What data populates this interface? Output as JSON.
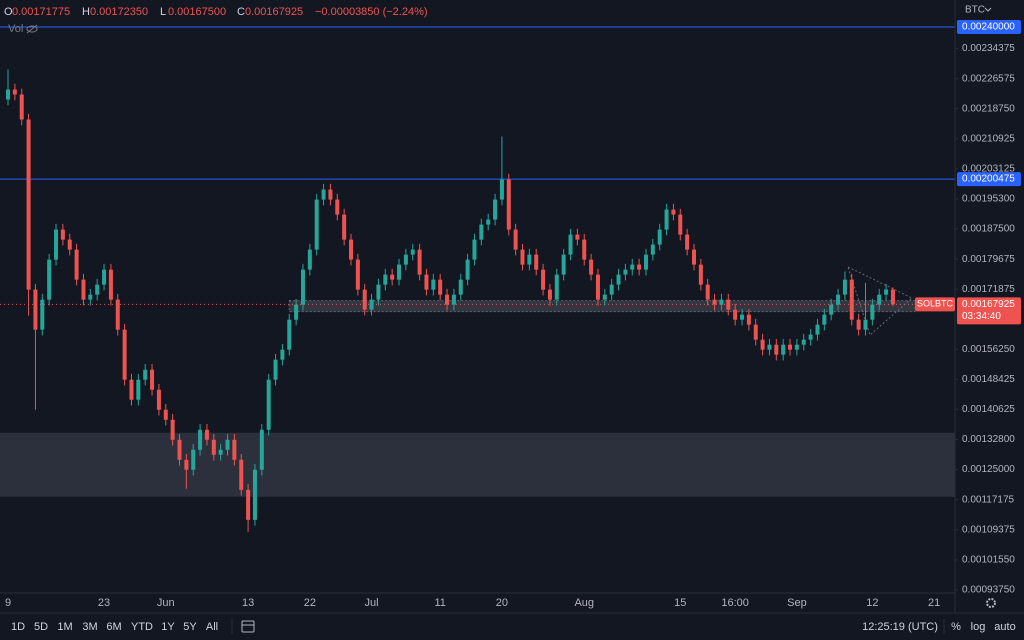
{
  "header": {
    "ohlc": [
      {
        "key": "O",
        "value": "0.00171775"
      },
      {
        "key": "H",
        "value": "0.00172350"
      },
      {
        "key": "L",
        "value": "0.00167500"
      },
      {
        "key": "C",
        "value": "0.00167925"
      }
    ],
    "change": "−0.00003850 (−2.24%)",
    "volume_label": "Vol"
  },
  "axis_currency": "BTC",
  "toolbar": {
    "ranges": [
      "1D",
      "5D",
      "1M",
      "3M",
      "6M",
      "YTD",
      "1Y",
      "5Y",
      "All"
    ],
    "time": "12:25:19 (UTC)",
    "options": [
      "%",
      "log",
      "auto"
    ]
  },
  "chart_data": {
    "type": "candlestick",
    "symbol": "SOLBTC",
    "countdown": "03:34:40",
    "last_price_label": "0.00167925",
    "up_color": "#26a69a",
    "down_color": "#ef5350",
    "grid": false,
    "ylim": [
      0.00088,
      0.00247
    ],
    "yticks": [
      {
        "value": 0.0009375,
        "label": "0.00093750"
      },
      {
        "value": 0.0010155,
        "label": "0.00101550"
      },
      0.00109375,
      0.00117175,
      {
        "value": 0.00125,
        "label": "0.00125000"
      },
      {
        "value": 0.001328,
        "label": "0.00132800"
      },
      0.00140625,
      0.00148425,
      {
        "value": 0.0015625,
        "label": "0.00156250"
      },
      0.00171875,
      0.00179675,
      {
        "value": 0.001875,
        "label": "0.00187500"
      },
      {
        "value": 0.001953,
        "label": "0.00195300"
      },
      0.00203125,
      0.00210925,
      {
        "value": 0.0021875,
        "label": "0.00218750"
      },
      0.00226575,
      0.00234375
    ],
    "price_lines": [
      {
        "value": 0.0024,
        "label": "0.00240000",
        "color": "#2962ff"
      },
      {
        "value": 0.00200475,
        "label": "0.00200475",
        "color": "#2962ff"
      }
    ],
    "zones": [
      {
        "low": 0.0011793,
        "high": 0.0013457
      },
      {
        "low": 0.0016603,
        "high": 0.0016889
      }
    ],
    "categories": [
      "9",
      null,
      null,
      null,
      null,
      null,
      null,
      null,
      null,
      null,
      null,
      null,
      null,
      null,
      "23",
      null,
      null,
      null,
      null,
      null,
      null,
      null,
      null,
      "Jun",
      null,
      null,
      null,
      null,
      null,
      null,
      null,
      null,
      null,
      null,
      null,
      "13",
      null,
      null,
      null,
      null,
      null,
      null,
      null,
      null,
      "22",
      null,
      null,
      null,
      null,
      null,
      null,
      null,
      null,
      "Jul",
      null,
      null,
      null,
      null,
      null,
      null,
      null,
      null,
      null,
      "11",
      null,
      null,
      null,
      null,
      null,
      null,
      null,
      null,
      "20",
      null,
      null,
      null,
      null,
      null,
      null,
      null,
      null,
      null,
      null,
      null,
      "Aug",
      null,
      null,
      null,
      null,
      null,
      null,
      null,
      null,
      null,
      null,
      null,
      null,
      null,
      "15",
      null,
      null,
      null,
      null,
      null,
      null,
      null,
      "16:00",
      null,
      null,
      null,
      null,
      null,
      null,
      null,
      null,
      "Sep",
      null,
      null,
      null,
      null,
      null,
      null,
      null,
      null,
      null,
      null,
      "12",
      null,
      null,
      null,
      null,
      null,
      null,
      null,
      null,
      "21"
    ],
    "candles": [
      [
        0.0022115,
        0.0022895,
        0.0021965,
        0.0022375
      ],
      [
        0.0022375,
        0.0022525,
        0.0022095,
        0.0022245
      ],
      [
        0.0022245,
        0.0022395,
        0.0021445,
        0.0021595
      ],
      [
        0.0021595,
        0.0021745,
        0.00165,
        0.0017175
      ],
      [
        0.0017175,
        0.0017325,
        0.0014055,
        0.0016135
      ],
      [
        0.0016135,
        0.0017065,
        0.0015985,
        0.0016915
      ],
      [
        0.0016915,
        0.0018105,
        0.0016765,
        0.0017955
      ],
      [
        0.0017955,
        0.0018885,
        0.0017805,
        0.0018735
      ],
      [
        0.0018735,
        0.0018885,
        0.0018325,
        0.0018475
      ],
      [
        0.0018475,
        0.0018625,
        0.0018065,
        0.0018215
      ],
      [
        0.0018215,
        0.0018365,
        0.0017285,
        0.0017435
      ],
      [
        0.0017435,
        0.0017585,
        0.0016765,
        0.0016915
      ],
      [
        0.0016915,
        0.0017195,
        0.0016765,
        0.0017045
      ],
      [
        0.0017045,
        0.0017455,
        0.0016895,
        0.0017305
      ],
      [
        0.0017305,
        0.0017845,
        0.0017155,
        0.0017695
      ],
      [
        0.0017695,
        0.0017845,
        0.0016765,
        0.0016915
      ],
      [
        0.0016915,
        0.0017065,
        0.0015985,
        0.0016135
      ],
      [
        0.0016135,
        0.0016285,
        0.0014685,
        0.0014835
      ],
      [
        0.0014835,
        0.0014985,
        0.0014165,
        0.0014315
      ],
      [
        0.0014315,
        0.0014985,
        0.0014165,
        0.0014835
      ],
      [
        0.0014835,
        0.0015245,
        0.0014685,
        0.0015095
      ],
      [
        0.0015095,
        0.0015245,
        0.0014425,
        0.0014575
      ],
      [
        0.0014575,
        0.0014725,
        0.0013905,
        0.0014055
      ],
      [
        0.0014055,
        0.0014205,
        0.0013645,
        0.0013795
      ],
      [
        0.0013795,
        0.0013945,
        0.0013125,
        0.0013275
      ],
      [
        0.0013275,
        0.0013425,
        0.0012605,
        0.0012755
      ],
      [
        0.0012755,
        0.0012905,
        0.0012,
        0.0012495
      ],
      [
        0.0012495,
        0.0013165,
        0.0012345,
        0.0013015
      ],
      [
        0.0013015,
        0.0013685,
        0.0012865,
        0.0013535
      ],
      [
        0.0013535,
        0.0013685,
        0.0013125,
        0.0013275
      ],
      [
        0.0013275,
        0.0013425,
        0.0012735,
        0.0012885
      ],
      [
        0.0012885,
        0.0013165,
        0.0012735,
        0.0013015
      ],
      [
        0.0013015,
        0.0013425,
        0.0012865,
        0.0013275
      ],
      [
        0.0013275,
        0.0013425,
        0.0012605,
        0.0012755
      ],
      [
        0.0012755,
        0.0012905,
        0.0011825,
        0.0011975
      ],
      [
        0.0011975,
        0.0012125,
        0.0010883,
        0.0011195
      ],
      [
        0.0011195,
        0.0012645,
        0.0011045,
        0.0012495
      ],
      [
        0.0012495,
        0.0013685,
        0.0012345,
        0.0013535
      ],
      [
        0.0013535,
        0.0014985,
        0.0013385,
        0.0014835
      ],
      [
        0.0014835,
        0.0015505,
        0.0014685,
        0.0015355
      ],
      [
        0.0015355,
        0.0015765,
        0.0015205,
        0.0015615
      ],
      [
        0.0015615,
        0.0016545,
        0.0015465,
        0.0016395
      ],
      [
        0.0016395,
        0.0016935,
        0.0016245,
        0.0016785
      ],
      [
        0.0016785,
        0.0017845,
        0.0016635,
        0.0017695
      ],
      [
        0.0017695,
        0.0018365,
        0.0017545,
        0.0018215
      ],
      [
        0.0018215,
        0.0019665,
        0.0018065,
        0.0019515
      ],
      [
        0.0019515,
        0.0019925,
        0.0019365,
        0.0019775
      ],
      [
        0.0019775,
        0.0019925,
        0.0019365,
        0.0019515
      ],
      [
        0.0019515,
        0.0019665,
        0.0018975,
        0.0019125
      ],
      [
        0.0019125,
        0.0019275,
        0.0018325,
        0.0018475
      ],
      [
        0.0018475,
        0.0018625,
        0.0017805,
        0.0017955
      ],
      [
        0.0017955,
        0.0018105,
        0.0017025,
        0.0017175
      ],
      [
        0.0017175,
        0.0017325,
        0.0016505,
        0.0016655
      ],
      [
        0.0016655,
        0.0017065,
        0.0016505,
        0.0016915
      ],
      [
        0.0016915,
        0.0017455,
        0.0016765,
        0.0017305
      ],
      [
        0.0017305,
        0.0017715,
        0.0017155,
        0.0017565
      ],
      [
        0.0017565,
        0.0017715,
        0.0017285,
        0.0017435
      ],
      [
        0.0017435,
        0.0017975,
        0.0017285,
        0.0017825
      ],
      [
        0.0017825,
        0.0018235,
        0.0017675,
        0.0018085
      ],
      [
        0.0018085,
        0.0018365,
        0.0017935,
        0.0018215
      ],
      [
        0.0018215,
        0.0018365,
        0.0017415,
        0.0017565
      ],
      [
        0.0017565,
        0.0017715,
        0.0017025,
        0.0017175
      ],
      [
        0.0017175,
        0.0017585,
        0.0017025,
        0.0017435
      ],
      [
        0.0017435,
        0.0017585,
        0.0016895,
        0.0017045
      ],
      [
        0.0017045,
        0.0017195,
        0.0016635,
        0.0016785
      ],
      [
        0.0016785,
        0.0017195,
        0.0016635,
        0.0017045
      ],
      [
        0.0017045,
        0.0017585,
        0.0016895,
        0.0017435
      ],
      [
        0.0017435,
        0.0018105,
        0.0017285,
        0.0017955
      ],
      [
        0.0017955,
        0.0018625,
        0.0017805,
        0.0018475
      ],
      [
        0.0018475,
        0.0019015,
        0.0018325,
        0.0018865
      ],
      [
        0.0018865,
        0.0019145,
        0.0018715,
        0.0018995
      ],
      [
        0.0018995,
        0.0019665,
        0.0018845,
        0.0019515
      ],
      [
        0.0019515,
        0.0021153,
        0.0019365,
        0.0020035
      ],
      [
        0.0020035,
        0.0020185,
        0.0018585,
        0.0018735
      ],
      [
        0.0018735,
        0.0018885,
        0.0018065,
        0.0018215
      ],
      [
        0.0018215,
        0.0018365,
        0.0017675,
        0.0017825
      ],
      [
        0.0017825,
        0.0018235,
        0.0017675,
        0.0018085
      ],
      [
        0.0018085,
        0.0018235,
        0.0017545,
        0.0017695
      ],
      [
        0.0017695,
        0.0017845,
        0.0017025,
        0.0017175
      ],
      [
        0.0017175,
        0.0017325,
        0.0016765,
        0.0016915
      ],
      [
        0.0016915,
        0.0017715,
        0.0016765,
        0.0017565
      ],
      [
        0.0017565,
        0.0018235,
        0.0017415,
        0.0018085
      ],
      [
        0.0018085,
        0.0018755,
        0.0017935,
        0.0018605
      ],
      [
        0.0018605,
        0.0018755,
        0.0018325,
        0.0018475
      ],
      [
        0.0018475,
        0.0018625,
        0.0017805,
        0.0017955
      ],
      [
        0.0017955,
        0.0018105,
        0.0017415,
        0.0017565
      ],
      [
        0.0017565,
        0.0017715,
        0.0016765,
        0.0016915
      ],
      [
        0.0016915,
        0.0017195,
        0.0016765,
        0.0017045
      ],
      [
        0.0017045,
        0.0017455,
        0.0016895,
        0.0017305
      ],
      [
        0.0017305,
        0.0017715,
        0.0017155,
        0.0017565
      ],
      [
        0.0017565,
        0.0017845,
        0.0017415,
        0.0017695
      ],
      [
        0.0017695,
        0.0017975,
        0.0017545,
        0.0017825
      ],
      [
        0.0017825,
        0.0017975,
        0.0017545,
        0.0017695
      ],
      [
        0.0017695,
        0.0018235,
        0.0017545,
        0.0018085
      ],
      [
        0.0018085,
        0.0018495,
        0.0017935,
        0.0018345
      ],
      [
        0.0018345,
        0.0018885,
        0.0018195,
        0.0018735
      ],
      [
        0.0018735,
        0.0019405,
        0.0018585,
        0.0019255
      ],
      [
        0.0019255,
        0.0019405,
        0.0018975,
        0.0019125
      ],
      [
        0.0019125,
        0.0019275,
        0.0018455,
        0.0018605
      ],
      [
        0.0018605,
        0.0018755,
        0.0018065,
        0.0018215
      ],
      [
        0.0018215,
        0.0018365,
        0.0017675,
        0.0017825
      ],
      [
        0.0017825,
        0.0017975,
        0.0017155,
        0.0017305
      ],
      [
        0.0017305,
        0.0017455,
        0.0016765,
        0.0016915
      ],
      [
        0.0016915,
        0.0017065,
        0.0016635,
        0.0016785
      ],
      [
        0.0016785,
        0.0017065,
        0.0016635,
        0.0016915
      ],
      [
        0.0016915,
        0.0017065,
        0.0016505,
        0.0016655
      ],
      [
        0.0016655,
        0.0016805,
        0.0016245,
        0.0016395
      ],
      [
        0.0016395,
        0.0016675,
        0.0016245,
        0.0016525
      ],
      [
        0.0016525,
        0.0016675,
        0.0016115,
        0.0016265
      ],
      [
        0.0016265,
        0.0016415,
        0.0015725,
        0.0015875
      ],
      [
        0.0015875,
        0.0016025,
        0.0015465,
        0.0015615
      ],
      [
        0.0015615,
        0.0015895,
        0.0015465,
        0.0015745
      ],
      [
        0.0015745,
        0.0015895,
        0.0015335,
        0.0015485
      ],
      [
        0.0015485,
        0.0015895,
        0.0015335,
        0.0015745
      ],
      [
        0.0015745,
        0.0015895,
        0.0015465,
        0.0015615
      ],
      [
        0.0015615,
        0.0015895,
        0.0015465,
        0.0015745
      ],
      [
        0.0015745,
        0.0016025,
        0.0015595,
        0.0015875
      ],
      [
        0.0015875,
        0.0016155,
        0.0015725,
        0.0016005
      ],
      [
        0.0016005,
        0.0016415,
        0.0015855,
        0.0016265
      ],
      [
        0.0016265,
        0.0016675,
        0.0016115,
        0.0016525
      ],
      [
        0.0016525,
        0.0016935,
        0.0016375,
        0.0016785
      ],
      [
        0.0016785,
        0.0017195,
        0.0016635,
        0.0017045
      ],
      [
        0.0017045,
        0.001765,
        0.0016895,
        0.0017435
      ],
      [
        0.0017435,
        0.0017585,
        0.0016245,
        0.0016395
      ],
      [
        0.0016395,
        0.0016545,
        0.0015985,
        0.0016135
      ],
      [
        0.0016135,
        0.001735,
        0.0015985,
        0.0016395
      ],
      [
        0.0016395,
        0.0016935,
        0.0016245,
        0.0016785
      ],
      [
        0.0016785,
        0.0017195,
        0.0016635,
        0.0017045
      ],
      [
        0.0017045,
        0.00173275,
        0.0016895,
        0.00171775
      ],
      [
        0.00171775,
        0.0017235,
        0.001675,
        0.00167925
      ],
      null,
      null,
      null,
      null,
      null,
      null
    ]
  }
}
